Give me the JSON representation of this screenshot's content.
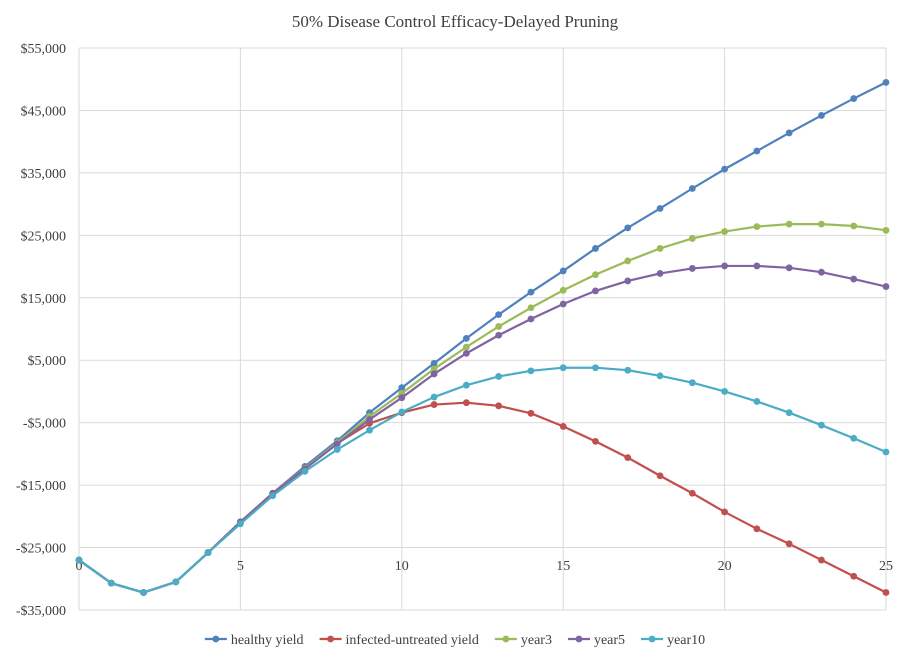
{
  "chart_data": {
    "type": "line",
    "title": "50% Disease Control Efficacy-Delayed  Pruning",
    "xlabel": "",
    "ylabel": "",
    "xlim": [
      0,
      25
    ],
    "ylim": [
      -35000,
      55000
    ],
    "x_ticks": [
      0,
      5,
      10,
      15,
      20,
      25
    ],
    "x_tick_labels": [
      "0",
      "5",
      "10",
      "15",
      "20",
      "25"
    ],
    "y_ticks": [
      55000,
      45000,
      35000,
      25000,
      15000,
      5000,
      -5000,
      -15000,
      -25000,
      -35000
    ],
    "y_tick_labels": [
      "$55,000",
      "$45,000",
      "$35,000",
      "$25,000",
      "$15,000",
      "$5,000",
      "-$5,000",
      "-$15,000",
      "-$25,000",
      "-$35,000"
    ],
    "grid": true,
    "legend_position": "bottom",
    "x": [
      0,
      1,
      2,
      3,
      4,
      5,
      6,
      7,
      8,
      9,
      10,
      11,
      12,
      13,
      14,
      15,
      16,
      17,
      18,
      19,
      20,
      21,
      22,
      23,
      24,
      25
    ],
    "series": [
      {
        "name": "healthy yield",
        "color": "#4f81bd",
        "values": [
          -27000,
          -30700,
          -32200,
          -30500,
          -25800,
          -20900,
          -16300,
          -12000,
          -7900,
          -3400,
          600,
          4500,
          8500,
          12300,
          15900,
          19300,
          22900,
          26200,
          29300,
          32500,
          35600,
          38500,
          41400,
          44200,
          46900,
          49500
        ]
      },
      {
        "name": "infected-untreated yield",
        "color": "#c0504d",
        "values": [
          -27000,
          -30700,
          -32200,
          -30500,
          -25800,
          -20900,
          -16300,
          -12300,
          -8300,
          -5100,
          -3400,
          -2100,
          -1800,
          -2300,
          -3500,
          -5600,
          -8000,
          -10600,
          -13500,
          -16300,
          -19300,
          -22000,
          -24400,
          -27000,
          -29600,
          -32200
        ]
      },
      {
        "name": "year3",
        "color": "#9bbb59",
        "values": [
          -27000,
          -30700,
          -32200,
          -30500,
          -25800,
          -20900,
          -16400,
          -12300,
          -8200,
          -4000,
          -300,
          3600,
          7100,
          10400,
          13400,
          16200,
          18700,
          20900,
          22900,
          24500,
          25600,
          26400,
          26800,
          26800,
          26500,
          25800
        ]
      },
      {
        "name": "year5",
        "color": "#8064a2",
        "values": [
          -27000,
          -30700,
          -32200,
          -30500,
          -25800,
          -20900,
          -16400,
          -12400,
          -8400,
          -4500,
          -1000,
          2800,
          6100,
          9000,
          11600,
          14000,
          16100,
          17700,
          18900,
          19700,
          20100,
          20100,
          19800,
          19100,
          18000,
          16800
        ]
      },
      {
        "name": "year10",
        "color": "#4bacc6",
        "values": [
          -27000,
          -30700,
          -32200,
          -30500,
          -25800,
          -21200,
          -16700,
          -12800,
          -9300,
          -6200,
          -3300,
          -900,
          1000,
          2400,
          3300,
          3800,
          3800,
          3400,
          2500,
          1400,
          0,
          -1600,
          -3400,
          -5400,
          -7500,
          -9700
        ]
      }
    ]
  }
}
